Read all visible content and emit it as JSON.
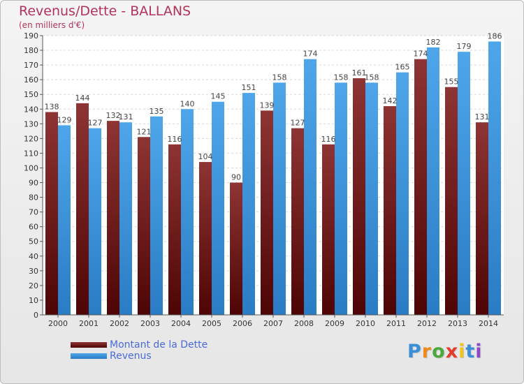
{
  "chart_data": {
    "type": "bar",
    "title": "Revenus/Dette - BALLANS",
    "subtitle": "(en milliers d'€)",
    "xlabel": "",
    "ylabel": "",
    "ylim": [
      0,
      190
    ],
    "y_ticks": [
      0,
      10,
      20,
      30,
      40,
      50,
      60,
      70,
      80,
      90,
      100,
      110,
      120,
      130,
      140,
      150,
      160,
      170,
      180,
      190
    ],
    "grid": true,
    "legend_position": "bottom-left",
    "categories": [
      "2000",
      "2001",
      "2002",
      "2003",
      "2004",
      "2005",
      "2006",
      "2007",
      "2008",
      "2009",
      "2010",
      "2011",
      "2012",
      "2013",
      "2014"
    ],
    "series": [
      {
        "name": "Montant de la Dette",
        "color": "#7b1c1c",
        "values": [
          138,
          144,
          132,
          121,
          116,
          104,
          90,
          139,
          127,
          116,
          161,
          142,
          174,
          155,
          131
        ]
      },
      {
        "name": "Revenus",
        "color": "#3d95e0",
        "values": [
          129,
          127,
          131,
          135,
          140,
          145,
          151,
          158,
          174,
          158,
          158,
          165,
          182,
          179,
          186
        ]
      }
    ]
  },
  "logo": {
    "letters": [
      "P",
      "r",
      "o",
      "x",
      "i",
      "t",
      "i"
    ],
    "colors": [
      "#3b8ed8",
      "#f08a1c",
      "#4aa83c",
      "#e23c2c",
      "#f0c418",
      "#3b8ed8",
      "#8a4ac8"
    ]
  }
}
